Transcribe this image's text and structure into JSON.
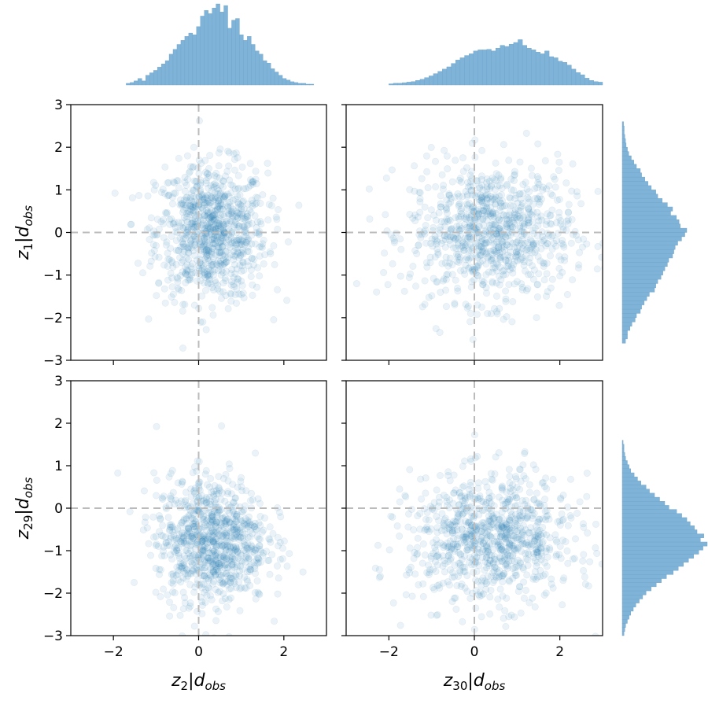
{
  "chart_data": [
    {
      "type": "scatter",
      "panel": "top-left",
      "xlabel": "",
      "ylabel": "z_1|d_obs",
      "xlim": [
        -3,
        3
      ],
      "ylim": [
        -3,
        3
      ],
      "ref_lines": {
        "x": 0,
        "y": 0
      },
      "mean": [
        0.3,
        0.0
      ],
      "std": [
        0.65,
        0.8
      ],
      "n_points": 900,
      "x_ticks": [
        "",
        "",
        ""
      ],
      "y_ticks": [
        "3",
        "2",
        "1",
        "0",
        "−1",
        "−2",
        "−3"
      ]
    },
    {
      "type": "scatter",
      "panel": "top-right",
      "xlabel": "",
      "ylabel": "",
      "xlim": [
        -3,
        3
      ],
      "ylim": [
        -3,
        3
      ],
      "ref_lines": {
        "x": 0,
        "y": 0
      },
      "mean": [
        0.4,
        0.0
      ],
      "std": [
        0.95,
        0.8
      ],
      "n_points": 900
    },
    {
      "type": "scatter",
      "panel": "bottom-left",
      "xlabel": "z_2|d_obs",
      "ylabel": "z_29|d_obs",
      "xlim": [
        -3,
        3
      ],
      "ylim": [
        -3,
        3
      ],
      "ref_lines": {
        "x": 0,
        "y": 0
      },
      "mean": [
        0.3,
        -0.75
      ],
      "std": [
        0.65,
        0.75
      ],
      "n_points": 900,
      "x_ticks": [
        "−2",
        "0",
        "2"
      ],
      "y_ticks": [
        "3",
        "2",
        "1",
        "0",
        "−1",
        "−2",
        "−3"
      ]
    },
    {
      "type": "scatter",
      "panel": "bottom-right",
      "xlabel": "z_30|d_obs",
      "ylabel": "",
      "xlim": [
        -3,
        3
      ],
      "ylim": [
        -3,
        3
      ],
      "ref_lines": {
        "x": 0,
        "y": 0
      },
      "mean": [
        0.4,
        -0.75
      ],
      "std": [
        0.95,
        0.75
      ],
      "n_points": 900,
      "x_ticks": [
        "−2",
        "0",
        "2"
      ]
    },
    {
      "type": "bar",
      "panel": "top-marginal-left",
      "variable": "z_2",
      "bin_range": [
        -1.7,
        2.7
      ],
      "bins": 48,
      "relative_heights": [
        0.02,
        0.03,
        0.05,
        0.08,
        0.05,
        0.12,
        0.15,
        0.18,
        0.22,
        0.26,
        0.3,
        0.38,
        0.44,
        0.5,
        0.55,
        0.6,
        0.64,
        0.62,
        0.72,
        0.85,
        0.92,
        0.88,
        0.95,
        1.0,
        0.9,
        0.98,
        0.7,
        0.8,
        0.82,
        0.62,
        0.55,
        0.6,
        0.5,
        0.42,
        0.38,
        0.3,
        0.27,
        0.2,
        0.16,
        0.12,
        0.08,
        0.06,
        0.04,
        0.03,
        0.02,
        0.02,
        0.01,
        0.01
      ]
    },
    {
      "type": "bar",
      "panel": "top-marginal-right",
      "variable": "z_30",
      "bin_range": [
        -2.0,
        3.0
      ],
      "bins": 48,
      "relative_heights": [
        0.02,
        0.03,
        0.03,
        0.04,
        0.05,
        0.06,
        0.08,
        0.1,
        0.13,
        0.16,
        0.2,
        0.24,
        0.28,
        0.32,
        0.38,
        0.44,
        0.48,
        0.52,
        0.55,
        0.6,
        0.62,
        0.62,
        0.63,
        0.6,
        0.65,
        0.7,
        0.68,
        0.72,
        0.75,
        0.8,
        0.7,
        0.65,
        0.62,
        0.58,
        0.55,
        0.6,
        0.5,
        0.48,
        0.42,
        0.4,
        0.35,
        0.28,
        0.22,
        0.18,
        0.12,
        0.08,
        0.06,
        0.05
      ]
    },
    {
      "type": "bar",
      "panel": "right-marginal-top",
      "variable": "z_1",
      "bin_range": [
        -2.6,
        2.6
      ],
      "bins": 52,
      "relative_heights": [
        0.05,
        0.08,
        0.08,
        0.12,
        0.15,
        0.2,
        0.22,
        0.28,
        0.3,
        0.34,
        0.38,
        0.42,
        0.5,
        0.52,
        0.55,
        0.6,
        0.63,
        0.66,
        0.7,
        0.72,
        0.78,
        0.8,
        0.82,
        0.86,
        0.92,
        0.97,
        1.0,
        0.9,
        0.88,
        0.84,
        0.75,
        0.78,
        0.7,
        0.62,
        0.55,
        0.52,
        0.45,
        0.4,
        0.35,
        0.3,
        0.28,
        0.22,
        0.18,
        0.14,
        0.1,
        0.08,
        0.06,
        0.05,
        0.04,
        0.03,
        0.03,
        0.02
      ]
    },
    {
      "type": "bar",
      "panel": "right-marginal-bottom",
      "variable": "z_29",
      "bin_range": [
        -3.0,
        1.6
      ],
      "bins": 48,
      "relative_heights": [
        0.02,
        0.03,
        0.04,
        0.06,
        0.08,
        0.1,
        0.13,
        0.16,
        0.2,
        0.24,
        0.28,
        0.34,
        0.4,
        0.46,
        0.52,
        0.6,
        0.66,
        0.72,
        0.78,
        0.84,
        0.9,
        0.95,
        1.0,
        0.92,
        0.96,
        0.88,
        0.85,
        0.8,
        0.76,
        0.7,
        0.64,
        0.55,
        0.5,
        0.44,
        0.38,
        0.32,
        0.28,
        0.22,
        0.18,
        0.14,
        0.1,
        0.08,
        0.06,
        0.04,
        0.03,
        0.02,
        0.02,
        0.01
      ]
    }
  ]
}
